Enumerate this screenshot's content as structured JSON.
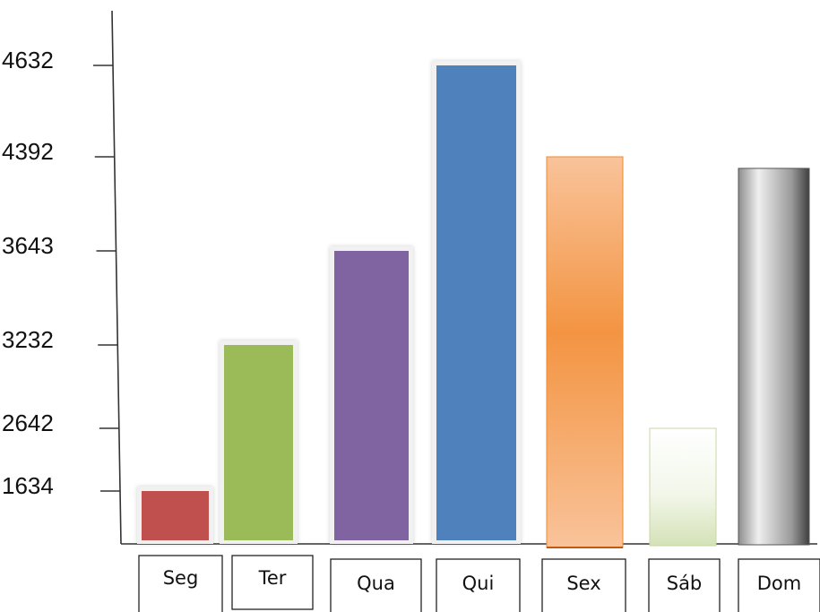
{
  "chart_data": {
    "type": "bar",
    "categories": [
      "Seg",
      "Ter",
      "Qua",
      "Qui",
      "Sex",
      "Sáb",
      "Dom"
    ],
    "values": [
      1634,
      3232,
      3643,
      4632,
      4392,
      2642,
      4300
    ],
    "yticks": [
      1634,
      2642,
      3232,
      3643,
      4392,
      4632
    ],
    "colors": [
      "#c0504d",
      "#9bbb59",
      "#8064a2",
      "#4f81bd",
      "#f79646",
      "#e8f0d8",
      "#8a8a8a"
    ],
    "title": "",
    "xlabel": "",
    "ylabel": "",
    "grid": false,
    "legend": "none"
  }
}
